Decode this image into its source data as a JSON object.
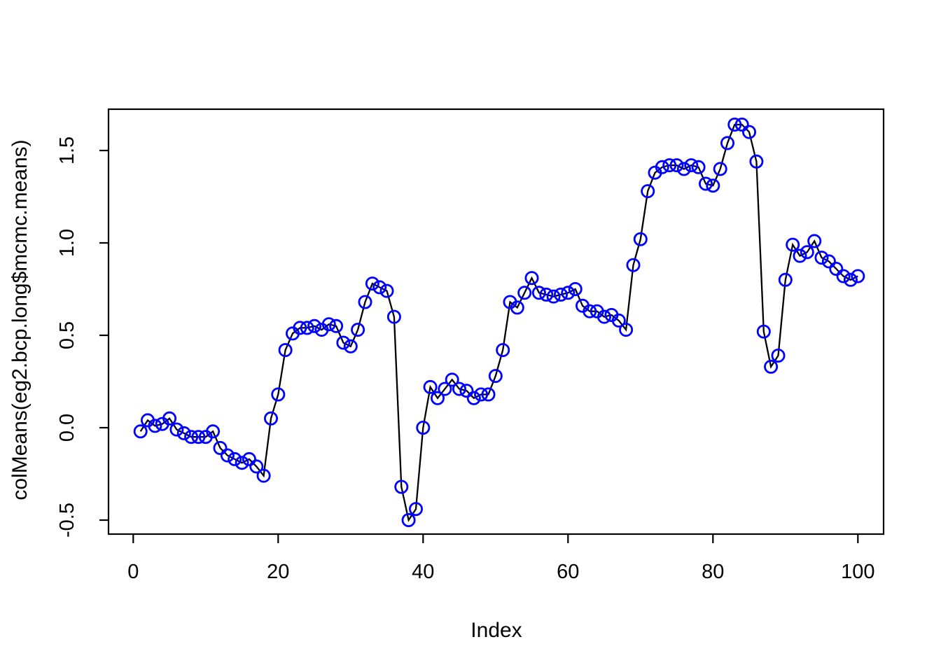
{
  "figure": {
    "background": "#ffffff"
  },
  "chart_data": {
    "type": "line",
    "title": "",
    "xlabel": "Index",
    "ylabel": "colMeans(eg2.bcp.long$mcmc.means)",
    "style": "r-base-type-o",
    "marker": "open-circle",
    "marker_color": "#0000ff",
    "line_color": "#000000",
    "axis_color": "#000000",
    "grid": false,
    "legend": null,
    "x_start": 1,
    "x_ticks": [
      0,
      20,
      40,
      60,
      80,
      100
    ],
    "x_tick_labels": [
      "0",
      "20",
      "40",
      "60",
      "80",
      "100"
    ],
    "y_ticks": [
      -0.5,
      0.0,
      0.5,
      1.0,
      1.5
    ],
    "y_tick_labels": [
      "-0.5",
      "0.0",
      "0.5",
      "1.0",
      "1.5"
    ],
    "xlim": [
      -3.4,
      103.5
    ],
    "ylim": [
      -0.576,
      1.723
    ],
    "values": [
      -0.02,
      0.04,
      0.01,
      0.02,
      0.05,
      -0.01,
      -0.03,
      -0.05,
      -0.05,
      -0.05,
      -0.02,
      -0.11,
      -0.15,
      -0.17,
      -0.19,
      -0.17,
      -0.21,
      -0.26,
      0.05,
      0.18,
      0.42,
      0.51,
      0.54,
      0.54,
      0.55,
      0.53,
      0.56,
      0.55,
      0.46,
      0.44,
      0.53,
      0.68,
      0.78,
      0.76,
      0.74,
      0.6,
      -0.32,
      -0.5,
      -0.44,
      0.0,
      0.22,
      0.16,
      0.21,
      0.26,
      0.21,
      0.2,
      0.16,
      0.18,
      0.18,
      0.28,
      0.42,
      0.68,
      0.65,
      0.73,
      0.81,
      0.73,
      0.72,
      0.71,
      0.72,
      0.73,
      0.75,
      0.66,
      0.63,
      0.63,
      0.6,
      0.61,
      0.58,
      0.53,
      0.88,
      1.02,
      1.28,
      1.38,
      1.41,
      1.42,
      1.42,
      1.4,
      1.42,
      1.41,
      1.32,
      1.31,
      1.4,
      1.54,
      1.64,
      1.64,
      1.6,
      1.44,
      0.52,
      0.33,
      0.39,
      0.8,
      0.99,
      0.93,
      0.95,
      1.01,
      0.92,
      0.9,
      0.86,
      0.82,
      0.8,
      0.82
    ]
  }
}
